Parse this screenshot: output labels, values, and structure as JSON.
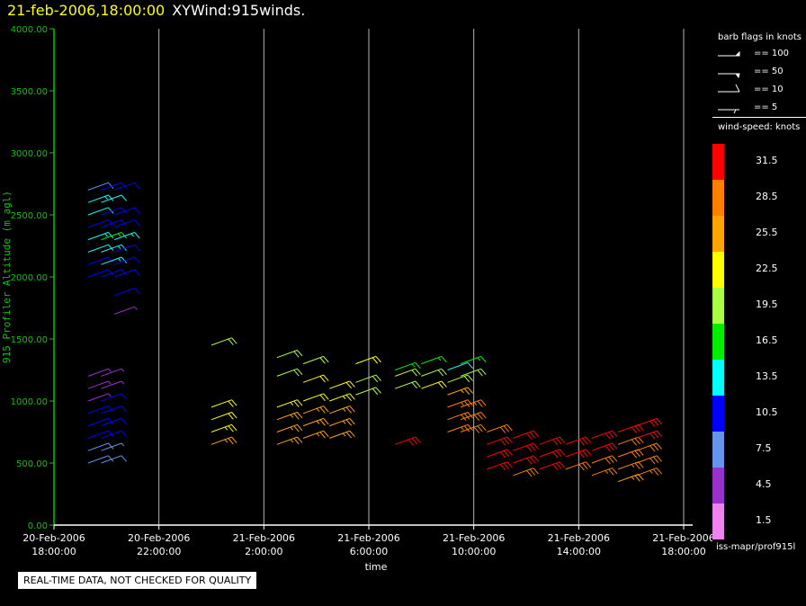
{
  "header": {
    "date": "21-feb-2006,18:00:00",
    "name": "XYWind:915winds."
  },
  "notice": "REAL-TIME DATA, NOT CHECKED FOR QUALITY",
  "source": "iss-mapr/prof915l",
  "barb_legend": {
    "title": "barb flags in knots",
    "items": [
      "== 100",
      "== 50",
      "== 10",
      "== 5"
    ]
  },
  "speed_legend": {
    "title": "wind-speed: knots",
    "labels": [
      "31.5",
      "28.5",
      "25.5",
      "22.5",
      "19.5",
      "16.5",
      "13.5",
      "10.5",
      "7.5",
      "4.5",
      "1.5"
    ],
    "colors": [
      "#ff0000",
      "#ff8000",
      "#ffa500",
      "#ffff00",
      "#aaff44",
      "#00ee00",
      "#00ffff",
      "#0000ff",
      "#6495ed",
      "#9932cc",
      "#ee82ee"
    ]
  },
  "colors": {
    "axis": "#00cc00",
    "grid": "#b4b4b4",
    "title_date": "#ffff00"
  },
  "chart_data": {
    "type": "scatter",
    "xlabel": "time",
    "ylabel": "915 Profiler Altitude (m agl)",
    "ylim": [
      0,
      4000
    ],
    "x_range_hours": [
      -24,
      0
    ],
    "y_ticks": [
      "0.00",
      "500.00",
      "1000.00",
      "1500.00",
      "2000.00",
      "2500.00",
      "3000.00",
      "3500.00",
      "4000.00"
    ],
    "x_ticks": [
      {
        "date": "20-Feb-2006",
        "time": "18:00:00"
      },
      {
        "date": "20-Feb-2006",
        "time": "22:00:00"
      },
      {
        "date": "21-Feb-2006",
        "time": "2:00:00"
      },
      {
        "date": "21-Feb-2006",
        "time": "6:00:00"
      },
      {
        "date": "21-Feb-2006",
        "time": "10:00:00"
      },
      {
        "date": "21-Feb-2006",
        "time": "14:00:00"
      },
      {
        "date": "21-Feb-2006",
        "time": "18:00:00"
      }
    ],
    "series_note": "wind barbs: [hour offset from 21-Feb-2006 18:00, altitude m, speed knots]",
    "barbs": [
      [
        -22.7,
        500,
        8
      ],
      [
        -22.7,
        600,
        8
      ],
      [
        -22.7,
        700,
        9
      ],
      [
        -22.7,
        800,
        10
      ],
      [
        -22.7,
        900,
        10
      ],
      [
        -22.7,
        1000,
        4
      ],
      [
        -22.7,
        1100,
        4
      ],
      [
        -22.7,
        1200,
        3
      ],
      [
        -22.2,
        500,
        8
      ],
      [
        -22.2,
        600,
        7
      ],
      [
        -22.2,
        700,
        9
      ],
      [
        -22.2,
        800,
        10
      ],
      [
        -22.2,
        900,
        10
      ],
      [
        -22.2,
        1000,
        10
      ],
      [
        -22.2,
        1100,
        4
      ],
      [
        -22.2,
        1200,
        4
      ],
      [
        -22.7,
        2000,
        10
      ],
      [
        -22.7,
        2100,
        9
      ],
      [
        -22.7,
        2200,
        12
      ],
      [
        -22.7,
        2300,
        14
      ],
      [
        -22.7,
        2400,
        10
      ],
      [
        -22.7,
        2500,
        12
      ],
      [
        -22.7,
        2600,
        14
      ],
      [
        -22.7,
        2700,
        8
      ],
      [
        -22.2,
        2000,
        10
      ],
      [
        -22.2,
        2100,
        14
      ],
      [
        -22.2,
        2200,
        13
      ],
      [
        -22.2,
        2300,
        15
      ],
      [
        -22.2,
        2400,
        11
      ],
      [
        -22.2,
        2500,
        10
      ],
      [
        -22.2,
        2600,
        12
      ],
      [
        -22.2,
        2700,
        10
      ],
      [
        -21.7,
        1700,
        4
      ],
      [
        -21.7,
        1850,
        9
      ],
      [
        -21.7,
        2000,
        10
      ],
      [
        -21.7,
        2100,
        11
      ],
      [
        -21.7,
        2200,
        10
      ],
      [
        -21.7,
        2300,
        13
      ],
      [
        -21.7,
        2400,
        10
      ],
      [
        -21.7,
        2500,
        11
      ],
      [
        -21.7,
        2700,
        10
      ],
      [
        -18.0,
        650,
        24
      ],
      [
        -18.0,
        750,
        23
      ],
      [
        -18.0,
        850,
        21
      ],
      [
        -18.0,
        950,
        21
      ],
      [
        -18.0,
        1450,
        19
      ],
      [
        -15.5,
        650,
        25
      ],
      [
        -15.5,
        750,
        24
      ],
      [
        -15.5,
        850,
        24
      ],
      [
        -15.5,
        950,
        23
      ],
      [
        -15.5,
        1350,
        20
      ],
      [
        -15.5,
        1200,
        19
      ],
      [
        -14.5,
        700,
        25
      ],
      [
        -14.5,
        800,
        24
      ],
      [
        -14.5,
        900,
        24
      ],
      [
        -14.5,
        1000,
        22
      ],
      [
        -14.5,
        1150,
        21
      ],
      [
        -14.5,
        1300,
        20
      ],
      [
        -13.5,
        700,
        26
      ],
      [
        -13.5,
        800,
        25
      ],
      [
        -13.5,
        900,
        24
      ],
      [
        -13.5,
        1000,
        23
      ],
      [
        -13.5,
        1100,
        21
      ],
      [
        -12.5,
        1050,
        20
      ],
      [
        -12.5,
        1150,
        19
      ],
      [
        -12.5,
        1300,
        21
      ],
      [
        -11.0,
        650,
        31
      ],
      [
        -11.0,
        1100,
        20
      ],
      [
        -11.0,
        1200,
        19
      ],
      [
        -11.0,
        1250,
        17
      ],
      [
        -10.0,
        1100,
        21
      ],
      [
        -10.0,
        1200,
        19
      ],
      [
        -10.0,
        1300,
        17
      ],
      [
        -9.0,
        750,
        27
      ],
      [
        -9.0,
        850,
        28
      ],
      [
        -9.0,
        950,
        27
      ],
      [
        -9.0,
        1050,
        26
      ],
      [
        -9.0,
        1150,
        20
      ],
      [
        -9.0,
        1250,
        12
      ],
      [
        -8.5,
        750,
        29
      ],
      [
        -8.5,
        850,
        28
      ],
      [
        -8.5,
        950,
        27
      ],
      [
        -8.5,
        1200,
        18
      ],
      [
        -8.5,
        1300,
        15
      ],
      [
        -7.5,
        450,
        31
      ],
      [
        -7.5,
        550,
        32
      ],
      [
        -7.5,
        650,
        30
      ],
      [
        -7.5,
        750,
        28
      ],
      [
        -6.5,
        400,
        29
      ],
      [
        -6.5,
        500,
        31
      ],
      [
        -6.5,
        600,
        30
      ],
      [
        -6.5,
        700,
        31
      ],
      [
        -5.5,
        450,
        30
      ],
      [
        -5.5,
        550,
        31
      ],
      [
        -5.5,
        650,
        32
      ],
      [
        -4.5,
        450,
        29
      ],
      [
        -4.5,
        550,
        30
      ],
      [
        -4.5,
        650,
        31
      ],
      [
        -3.5,
        400,
        27
      ],
      [
        -3.5,
        500,
        29
      ],
      [
        -3.5,
        600,
        30
      ],
      [
        -3.5,
        700,
        31
      ],
      [
        -2.5,
        350,
        26
      ],
      [
        -2.5,
        450,
        27
      ],
      [
        -2.5,
        550,
        28
      ],
      [
        -2.5,
        650,
        29
      ],
      [
        -2.5,
        750,
        31
      ],
      [
        -1.8,
        400,
        27
      ],
      [
        -1.8,
        500,
        28
      ],
      [
        -1.8,
        600,
        29
      ],
      [
        -1.8,
        700,
        30
      ],
      [
        -1.8,
        800,
        30
      ]
    ]
  }
}
